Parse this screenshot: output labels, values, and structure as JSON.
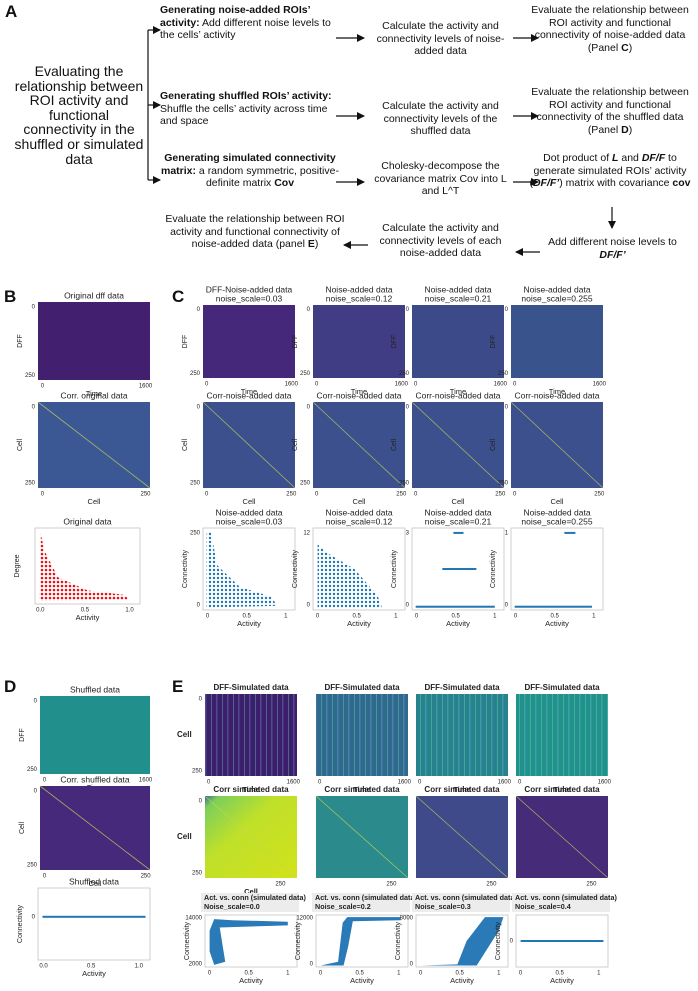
{
  "panel_a": {
    "label": "A",
    "intro": "Evaluating the relationship between ROI activity and functional connectivity in the shuffled or simulated data",
    "row1": {
      "step1": [
        "Generating noise-added ROIs’ activity:",
        " Add different noise levels to the cells’ activity"
      ],
      "step2": "Calculate the activity and connectivity levels of noise-added data",
      "step3": [
        "Evaluate the relationship between ROI activity and functional connectivity of noise-added data (Panel ",
        "C",
        ")"
      ]
    },
    "row2": {
      "step1": [
        "Generating shuffled ROIs’ activity:",
        " Shuffle the cells’ activity across time and space"
      ],
      "step2": "Calculate the activity and connectivity levels of the shuffled data",
      "step3": [
        "Evaluate the relationship between ROI activity and functional connectivity of the shuffled data (Panel ",
        "D",
        ")"
      ]
    },
    "row3": {
      "step1": [
        "Generating simulated connectivity matrix:",
        " a random symmetric, positive-definite matrix ",
        "Cov"
      ],
      "step2": "Cholesky-decompose the covariance matrix Cov into L and L^T",
      "step3": [
        "Dot product of ",
        "L",
        " and ",
        "DF/F",
        " to generate simulated ROIs’ activity (",
        "DF/F’",
        ") matrix with covariance ",
        "cov"
      ]
    },
    "row4": {
      "add": [
        "Add different noise levels to ",
        "DF/F’"
      ],
      "calc": "Calculate the activity and connectivity levels of each noise-added data",
      "eval": [
        "Evaluate the relationship between ROI activity and functional connectivity of noise-added data (panel ",
        "E",
        ")"
      ]
    }
  },
  "panel_b": {
    "label": "B",
    "plots": [
      {
        "title": "Original dff data",
        "ylabel": "DFF",
        "xlabel": "Time",
        "yticks": [
          "0",
          "250"
        ],
        "xticks": [
          "0",
          "1600"
        ]
      },
      {
        "title": "Corr. original data",
        "ylabel": "Cell",
        "xlabel": "Cell",
        "yticks": [
          "0",
          "250"
        ],
        "xticks": [
          "0",
          "250"
        ]
      },
      {
        "title": "Original data",
        "ylabel": "Degree",
        "xlabel": "Activity",
        "yticks": [],
        "xticks": [
          "0.0",
          "0.5",
          "1.0"
        ]
      }
    ]
  },
  "panel_c": {
    "label": "C",
    "plots": [
      {
        "title": "DFF-Noise-added data",
        "subtitle": "noise_scale=0.03",
        "ylabel": "DFF",
        "xlabel": "Time",
        "yticks": [
          "0",
          "250"
        ],
        "xticks": [
          "0",
          "1600"
        ]
      },
      {
        "title": "Noise-added data",
        "subtitle": "noise_scale=0.12",
        "ylabel": "DFF",
        "xlabel": "Time",
        "yticks": [
          "0",
          "250"
        ],
        "xticks": [
          "0",
          "1600"
        ]
      },
      {
        "title": "Noise-added data",
        "subtitle": "noise_scale=0.21",
        "ylabel": "DFF",
        "xlabel": "Time",
        "yticks": [
          "0",
          "250"
        ],
        "xticks": [
          "0",
          "1600"
        ]
      },
      {
        "title": "Noise-added data",
        "subtitle": "noise_scale=0.255",
        "ylabel": "DFF",
        "xlabel": "Time",
        "yticks": [
          "0",
          "250"
        ],
        "xticks": [
          "0",
          "1600"
        ]
      },
      {
        "title": "Corr-noise-added data",
        "ylabel": "Cell",
        "xlabel": "Cell",
        "yticks": [
          "0",
          "250"
        ],
        "xticks": [
          "0",
          "250"
        ]
      },
      {
        "title": "Corr-noise-added data",
        "ylabel": "Cell",
        "xlabel": "Cell",
        "yticks": [
          "0",
          "250"
        ],
        "xticks": [
          "0",
          "250"
        ]
      },
      {
        "title": "Corr-noise-added data",
        "ylabel": "Cell",
        "xlabel": "Cell",
        "yticks": [
          "0",
          "250"
        ],
        "xticks": [
          "0",
          "250"
        ]
      },
      {
        "title": "Corr-noise-added data",
        "ylabel": "Cell",
        "xlabel": "Cell",
        "yticks": [
          "0",
          "250"
        ],
        "xticks": [
          "0",
          "250"
        ]
      },
      {
        "title": "Noise-added data",
        "subtitle": "noise_scale=0.03",
        "ylabel": "Connectivity",
        "xlabel": "Activity",
        "yticks": [
          "250",
          "0"
        ],
        "xticks": [
          "0",
          "0.5",
          "1"
        ]
      },
      {
        "title": "Noise-added data",
        "subtitle": "noise_scale=0.12",
        "ylabel": "Connectivity",
        "xlabel": "Activity",
        "yticks": [
          "12",
          "0"
        ],
        "xticks": [
          "0",
          "0.5",
          "1"
        ]
      },
      {
        "title": "Noise-added data",
        "subtitle": "noise_scale=0.21",
        "ylabel": "Connectivity",
        "xlabel": "Activity",
        "yticks": [
          "3",
          "0"
        ],
        "xticks": [
          "0",
          "0.5",
          "1"
        ]
      },
      {
        "title": "Noise-added data",
        "subtitle": "noise_scale=0.255",
        "ylabel": "Connectivity",
        "xlabel": "Activity",
        "yticks": [
          "1",
          "0"
        ],
        "xticks": [
          "0",
          "0.5",
          "1"
        ]
      }
    ]
  },
  "panel_d": {
    "label": "D",
    "plots": [
      {
        "title": "Shuffled data",
        "ylabel": "DFF",
        "xlabel": "Time",
        "yticks": [
          "0",
          "250"
        ],
        "xticks": [
          "0",
          "1600"
        ]
      },
      {
        "title": "Corr. shuffled data",
        "ylabel": "Cell",
        "xlabel": "Cell",
        "yticks": [
          "0",
          "250"
        ],
        "xticks": [
          "0",
          "250"
        ]
      },
      {
        "title": "Shuffled data",
        "ylabel": "Connectivity",
        "xlabel": "Activity",
        "yticks": [
          "0"
        ],
        "xticks": [
          "0.0",
          "0.5",
          "1.0"
        ]
      }
    ]
  },
  "panel_e": {
    "label": "E",
    "plots": [
      {
        "title": "DFF-Simulated data",
        "ylabel": "Cell",
        "xlabel": "Time",
        "yticks": [
          "0",
          "250"
        ],
        "xticks": [
          "0",
          "1600"
        ]
      },
      {
        "title": "DFF-Simulated data",
        "xlabel": "Time",
        "yticks": [],
        "xticks": [
          "0",
          "1600"
        ]
      },
      {
        "title": "DFF-Simulated data",
        "xlabel": "Time",
        "yticks": [],
        "xticks": [
          "0",
          "1600"
        ]
      },
      {
        "title": "DFF-Simulated data",
        "xlabel": "Time",
        "yticks": [],
        "xticks": [
          "0",
          "1600"
        ]
      },
      {
        "title": "Corr simulated data",
        "ylabel": "Cell",
        "xlabel": "Cell",
        "yticks": [
          "0",
          "250"
        ],
        "xticks": [
          "250"
        ]
      },
      {
        "title": "Corr simulated data",
        "yticks": [],
        "xticks": [
          "250"
        ]
      },
      {
        "title": "Corr simulated data",
        "yticks": [],
        "xticks": [
          "250"
        ]
      },
      {
        "title": "Corr simulated data",
        "yticks": [],
        "xticks": [
          "250"
        ]
      },
      {
        "title": "Act. vs. conn (simulated data)",
        "subtitle": "Noise_scale=0.0",
        "ylabel": "Connectivity",
        "xlabel": "Activity",
        "yticks": [
          "14000",
          "2000"
        ],
        "xticks": [
          "0",
          "0.5",
          "1"
        ]
      },
      {
        "title": "Act. vs. conn (simulated data)",
        "subtitle": "Noise_scale=0.2",
        "ylabel": "Connectivity",
        "xlabel": "Activity",
        "yticks": [
          "12000",
          "0"
        ],
        "xticks": [
          "0",
          "0.5",
          "1"
        ]
      },
      {
        "title": "Act. vs. conn (simulated data)",
        "subtitle": "Noise_scale=0.3",
        "ylabel": "Connectivity",
        "xlabel": "Activity",
        "yticks": [
          "8000",
          "0"
        ],
        "xticks": [
          "0",
          "0.5",
          "1"
        ]
      },
      {
        "title": "Act. vs. conn (simulated data)",
        "subtitle": "Noise_scale=0.4",
        "ylabel": "Connectivity",
        "xlabel": "Activity",
        "yticks": [
          "0"
        ],
        "xticks": [
          "0",
          "0.5",
          "1"
        ]
      }
    ]
  }
}
